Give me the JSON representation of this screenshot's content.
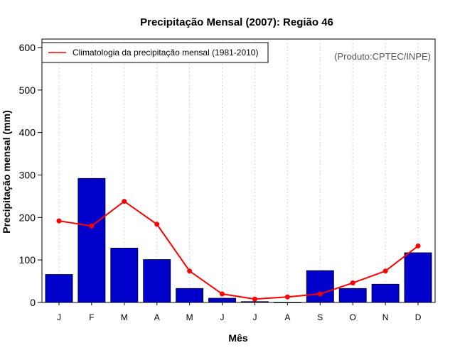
{
  "chart_data": {
    "type": "bar",
    "title": "Precipitação Mensal (2007): Região 46",
    "xlabel": "Mês",
    "ylabel": "Precipitação mensal (mm)",
    "ylim": [
      0,
      620
    ],
    "yticks": [
      0,
      100,
      200,
      300,
      400,
      500,
      600
    ],
    "categories": [
      "J",
      "F",
      "M",
      "A",
      "M",
      "J",
      "J",
      "A",
      "S",
      "O",
      "N",
      "D"
    ],
    "series": [
      {
        "name": "Precipitação mensal 2007",
        "type": "bar",
        "color": "#0000cd",
        "values": [
          66,
          292,
          128,
          101,
          33,
          10,
          2,
          0,
          75,
          33,
          43,
          117
        ]
      },
      {
        "name": "Climatologia da precipitação mensal (1981-2010)",
        "type": "line",
        "color": "#ff0000",
        "values": [
          192,
          180,
          238,
          184,
          74,
          20,
          8,
          13,
          20,
          46,
          74,
          133
        ]
      }
    ],
    "legend": {
      "position": "top-left",
      "label": "Climatologia da precipitação mensal (1981-2010)"
    },
    "credit": "(Produto:CPTEC/INPE)",
    "grid": "vertical-dotted"
  }
}
